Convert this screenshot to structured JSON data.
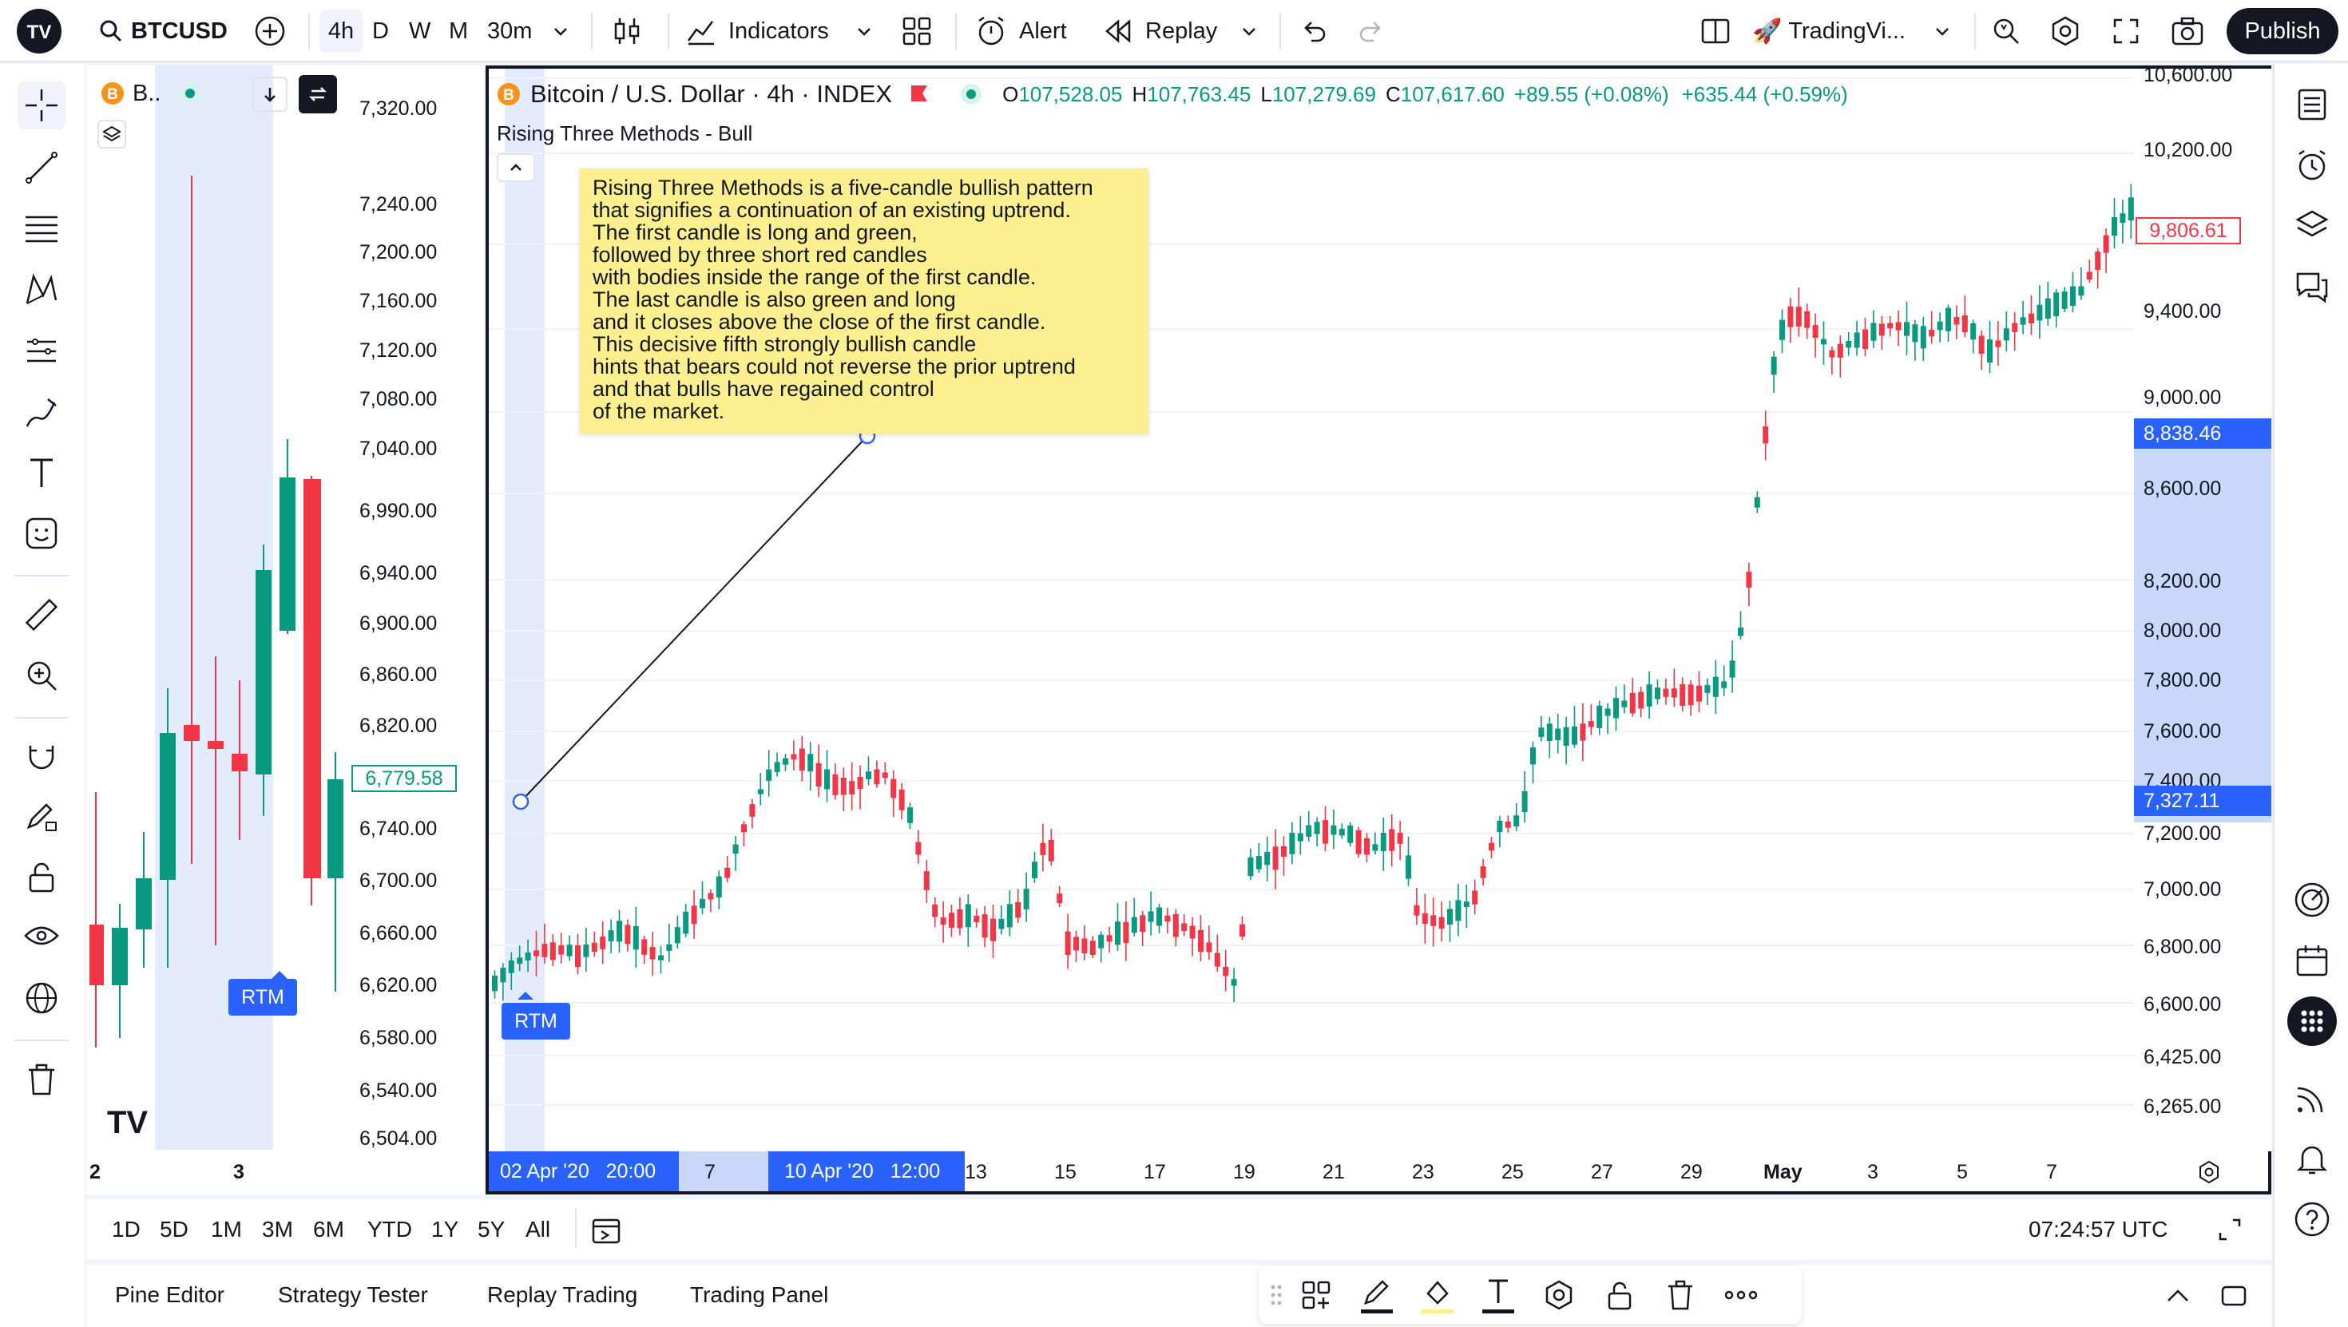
{
  "topbar": {
    "symbol": "BTCUSD",
    "timeframes": [
      "4h",
      "D",
      "W",
      "M",
      "30m"
    ],
    "active_timeframe": "4h",
    "indicators_label": "Indicators",
    "alert_label": "Alert",
    "replay_label": "Replay",
    "layout_name": "TradingVi...",
    "publish_label": "Publish"
  },
  "mini_chart": {
    "symbol_short": "B..",
    "price_axis": [
      "7,320.00",
      "7,240.00",
      "7,200.00",
      "7,160.00",
      "7,120.00",
      "7,080.00",
      "7,040.00",
      "6,990.00",
      "6,940.00",
      "6,900.00",
      "6,860.00",
      "6,820.00",
      "6,740.00",
      "6,700.00",
      "6,660.00",
      "6,620.00",
      "6,580.00",
      "6,540.00",
      "6,504.00"
    ],
    "current_price": "6,779.58",
    "x_axis": [
      "2",
      "3"
    ],
    "rtm_label": "RTM"
  },
  "main_chart": {
    "title": "Bitcoin / U.S. Dollar · 4h · INDEX",
    "ohlc": {
      "o_label": "O",
      "o": "107,528.05",
      "h_label": "H",
      "h": "107,763.45",
      "l_label": "L",
      "l": "107,279.69",
      "c_label": "C",
      "c": "107,617.60",
      "change": "+89.55 (+0.08%)",
      "change2": "+635.44 (+0.59%)"
    },
    "pattern_label": "Rising Three Methods - Bull",
    "note_text": "Rising Three Methods is a five-candle bullish pattern\nthat signifies a continuation of an existing uptrend.\nThe first candle is long and green,\nfollowed by three short red candles\nwith bodies inside the range of the first candle.\nThe last candle is also green and long\nand it closes above the close of the first candle.\nThis decisive fifth strongly bullish candle\nhints that bears could not reverse the prior uptrend\nand that bulls have regained control\nof the market.",
    "price_axis": [
      "10,600.00",
      "10,200.00",
      "9,400.00",
      "9,000.00",
      "8,600.00",
      "8,200.00",
      "8,000.00",
      "7,800.00",
      "7,600.00",
      "7,400.00",
      "7,200.00",
      "7,000.00",
      "6,800.00",
      "6,600.00",
      "6,425.00",
      "6,265.00"
    ],
    "last_price_tag": "9,806.61",
    "range_high_tag": "8,838.46",
    "range_low_tag": "7,327.11",
    "date_axis": [
      "7",
      "13",
      "15",
      "17",
      "19",
      "21",
      "23",
      "25",
      "27",
      "29",
      "May",
      "3",
      "5",
      "7"
    ],
    "range_start_date": "02 Apr '20   20:00",
    "range_end_date": "10 Apr '20   12:00",
    "rtm_label": "RTM"
  },
  "range_bar": {
    "ranges": [
      "1D",
      "5D",
      "1M",
      "3M",
      "6M",
      "YTD",
      "1Y",
      "5Y",
      "All"
    ],
    "clock": "07:24:57 UTC"
  },
  "bottom_panel": {
    "tabs": [
      "Pine Editor",
      "Strategy Tester",
      "Replay Trading",
      "Trading Panel"
    ]
  },
  "colors": {
    "up": "#089981",
    "down": "#f23645",
    "accent": "#2962ff",
    "highlight": "#e3ebfd",
    "note_bg": "#fbef8f"
  }
}
